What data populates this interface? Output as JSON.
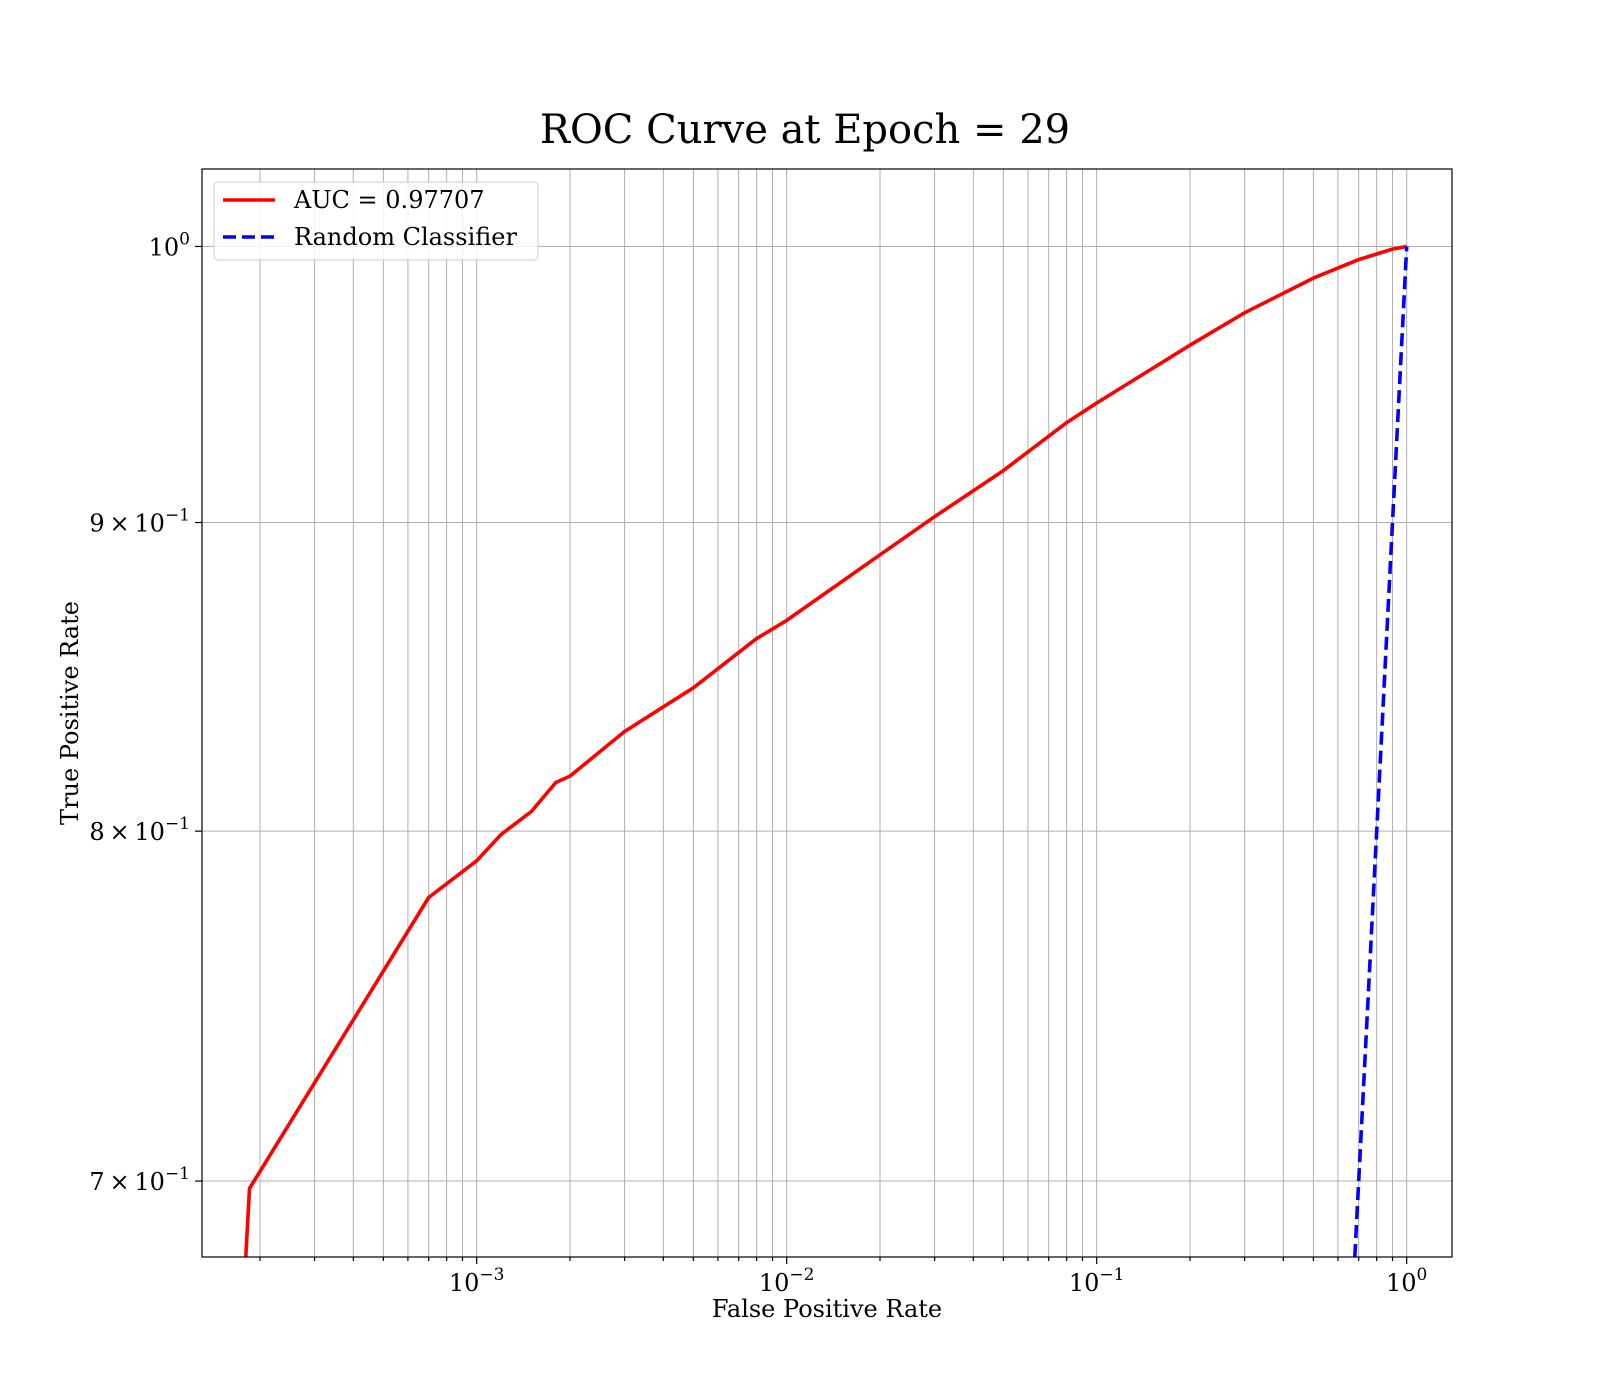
{
  "chart_data": {
    "type": "line",
    "title": "ROC Curve at Epoch = 29",
    "xlabel": "False Positive Rate",
    "ylabel": "True Positive Rate",
    "xscale": "log",
    "yscale": "log",
    "xlim": [
      0.00013,
      1.4
    ],
    "ylim": [
      0.68,
      1.03
    ],
    "grid": true,
    "grid_minor": true,
    "legend_position": "upper-left",
    "x_ticks": [
      {
        "value": 0.001,
        "base": "10",
        "exp": "−3"
      },
      {
        "value": 0.01,
        "base": "10",
        "exp": "−2"
      },
      {
        "value": 0.1,
        "base": "10",
        "exp": "−1"
      },
      {
        "value": 1,
        "base": "10",
        "exp": "0"
      }
    ],
    "y_ticks": [
      {
        "value": 0.7,
        "coef": "7",
        "base": "10",
        "exp": "−1"
      },
      {
        "value": 0.8,
        "coef": "8",
        "base": "10",
        "exp": "−1"
      },
      {
        "value": 0.9,
        "coef": "9",
        "base": "10",
        "exp": "−1"
      },
      {
        "value": 1.0,
        "coef": "",
        "base": "10",
        "exp": "0"
      }
    ],
    "series": [
      {
        "name": "AUC = 0.97707",
        "color": "#ff0000",
        "dash": "solid",
        "x": [
          0.00018,
          0.000185,
          0.0007,
          0.001,
          0.0012,
          0.0015,
          0.0018,
          0.002,
          0.003,
          0.005,
          0.008,
          0.01,
          0.02,
          0.03,
          0.05,
          0.08,
          0.1,
          0.2,
          0.3,
          0.5,
          0.7,
          0.9,
          1.0
        ],
        "y": [
          0.68,
          0.698,
          0.78,
          0.791,
          0.799,
          0.806,
          0.815,
          0.817,
          0.831,
          0.845,
          0.861,
          0.867,
          0.889,
          0.902,
          0.918,
          0.935,
          0.942,
          0.963,
          0.975,
          0.988,
          0.995,
          0.999,
          1.0
        ]
      },
      {
        "name": "Random Classifier",
        "color": "#0000ff",
        "dash": "dashed",
        "x": [
          0.68,
          0.8,
          0.9,
          1.0
        ],
        "y": [
          0.68,
          0.8,
          0.9,
          1.0
        ]
      }
    ]
  }
}
